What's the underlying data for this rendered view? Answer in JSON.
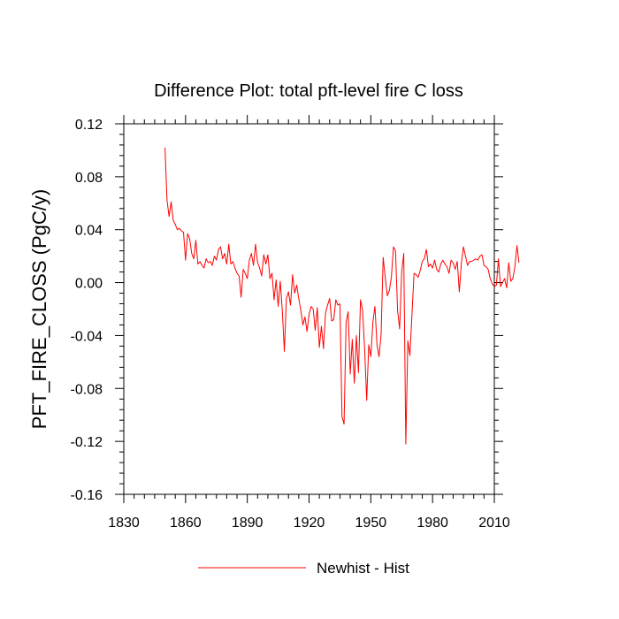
{
  "chart_data": {
    "type": "line",
    "title": "Difference Plot: total pft-level fire C loss",
    "xlabel": "",
    "ylabel": "PFT_FIRE_CLOSS  (PgC/y)",
    "xlim": [
      1830,
      2010
    ],
    "ylim": [
      -0.16,
      0.12
    ],
    "xticks": [
      1830,
      1860,
      1890,
      1920,
      1950,
      1980,
      2010
    ],
    "xtick_labels": [
      "1830",
      "1860",
      "1890",
      "1920",
      "1950",
      "1980",
      "2010"
    ],
    "yticks": [
      0.12,
      0.08,
      0.04,
      0.0,
      -0.04,
      -0.08,
      -0.12,
      -0.16
    ],
    "ytick_labels": [
      "0.12",
      "0.08",
      "0.04",
      "0.00",
      "-0.04",
      "-0.08",
      "-0.12",
      "-0.16"
    ],
    "grid": false,
    "legend_position": "bottom-center",
    "series": [
      {
        "name": "Newhist - Hist",
        "color": "#ff0000",
        "x_start": 1850,
        "x_step": 1,
        "values": [
          0.102,
          0.062,
          0.05,
          0.061,
          0.047,
          0.044,
          0.04,
          0.041,
          0.039,
          0.038,
          0.017,
          0.037,
          0.033,
          0.022,
          0.018,
          0.032,
          0.014,
          0.016,
          0.013,
          0.011,
          0.018,
          0.015,
          0.016,
          0.013,
          0.02,
          0.017,
          0.025,
          0.027,
          0.018,
          0.022,
          0.014,
          0.029,
          0.014,
          0.016,
          0.011,
          0.007,
          0.005,
          -0.011,
          0.01,
          0.007,
          0.003,
          0.017,
          0.022,
          0.013,
          0.029,
          0.015,
          0.011,
          0.005,
          0.021,
          0.014,
          0.021,
          0.003,
          0.007,
          -0.013,
          0.002,
          -0.018,
          0.001,
          -0.021,
          -0.052,
          -0.012,
          -0.007,
          -0.017,
          0.006,
          -0.008,
          -0.002,
          -0.012,
          -0.021,
          -0.032,
          -0.026,
          -0.037,
          -0.024,
          -0.018,
          -0.02,
          -0.036,
          -0.019,
          -0.049,
          -0.033,
          -0.05,
          -0.023,
          -0.017,
          -0.012,
          -0.029,
          -0.028,
          -0.013,
          -0.017,
          -0.016,
          -0.101,
          -0.107,
          -0.03,
          -0.022,
          -0.069,
          -0.043,
          -0.076,
          -0.04,
          -0.068,
          -0.013,
          -0.021,
          -0.05,
          -0.089,
          -0.047,
          -0.056,
          -0.03,
          -0.018,
          -0.047,
          -0.056,
          -0.039,
          0.019,
          0.004,
          -0.01,
          -0.006,
          0.004,
          0.027,
          0.024,
          -0.021,
          -0.035,
          0.008,
          0.022,
          -0.122,
          -0.044,
          -0.055,
          -0.024,
          0.007,
          0.006,
          0.004,
          0.009,
          0.016,
          0.018,
          0.025,
          0.012,
          0.014,
          0.011,
          0.017,
          0.01,
          0.008,
          0.014,
          0.017,
          0.014,
          0.012,
          0.007,
          0.017,
          0.015,
          0.01,
          0.016,
          -0.007,
          0.015,
          0.027,
          0.02,
          0.013,
          0.016,
          0.016,
          0.017,
          0.018,
          0.017,
          0.02,
          0.021,
          0.013,
          0.012,
          0.01,
          0.003,
          -0.001,
          -0.003,
          -0.002,
          0.018,
          -0.003,
          0.0,
          0.003,
          -0.004,
          0.015,
          0.001,
          0.003,
          0.012,
          0.028,
          0.015
        ]
      }
    ]
  }
}
